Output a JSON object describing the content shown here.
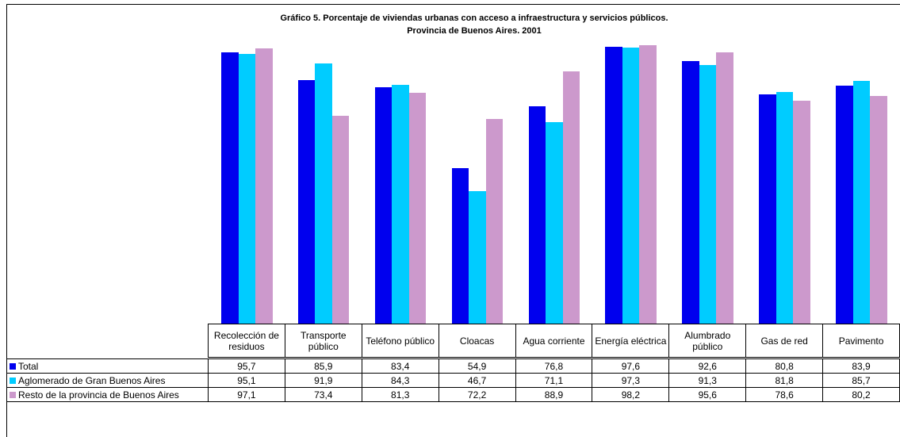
{
  "chart_data": {
    "type": "bar",
    "title": "Gráfico 5. Porcentaje de viviendas urbanas con acceso a infraestructura y servicios públicos.",
    "subtitle": "Provincia de Buenos Aires. 2001",
    "categories": [
      "Recolección de residuos",
      "Transporte público",
      "Teléfono público",
      "Cloacas",
      "Agua corriente",
      "Energía eléctrica",
      "Alumbrado público",
      "Gas de red",
      "Pavimento"
    ],
    "series": [
      {
        "name": "Total",
        "color": "#0000ee",
        "values": [
          95.7,
          85.9,
          83.4,
          54.9,
          76.8,
          97.6,
          92.6,
          80.8,
          83.9
        ],
        "value_labels": [
          "95,7",
          "85,9",
          "83,4",
          "54,9",
          "76,8",
          "97,6",
          "92,6",
          "80,8",
          "83,9"
        ]
      },
      {
        "name": "Aglomerado de Gran Buenos Aires",
        "color": "#00ccff",
        "values": [
          95.1,
          91.9,
          84.3,
          46.7,
          71.1,
          97.3,
          91.3,
          81.8,
          85.7
        ],
        "value_labels": [
          "95,1",
          "91,9",
          "84,3",
          "46,7",
          "71,1",
          "97,3",
          "91,3",
          "81,8",
          "85,7"
        ]
      },
      {
        "name": "Resto de la provincia de Buenos Aires",
        "color": "#cc99cc",
        "values": [
          97.1,
          73.4,
          81.3,
          72.2,
          88.9,
          98.2,
          95.6,
          78.6,
          80.2
        ],
        "value_labels": [
          "97,1",
          "73,4",
          "81,3",
          "72,2",
          "88,9",
          "98,2",
          "95,6",
          "78,6",
          "80,2"
        ]
      }
    ],
    "ylim": [
      0,
      100
    ]
  }
}
